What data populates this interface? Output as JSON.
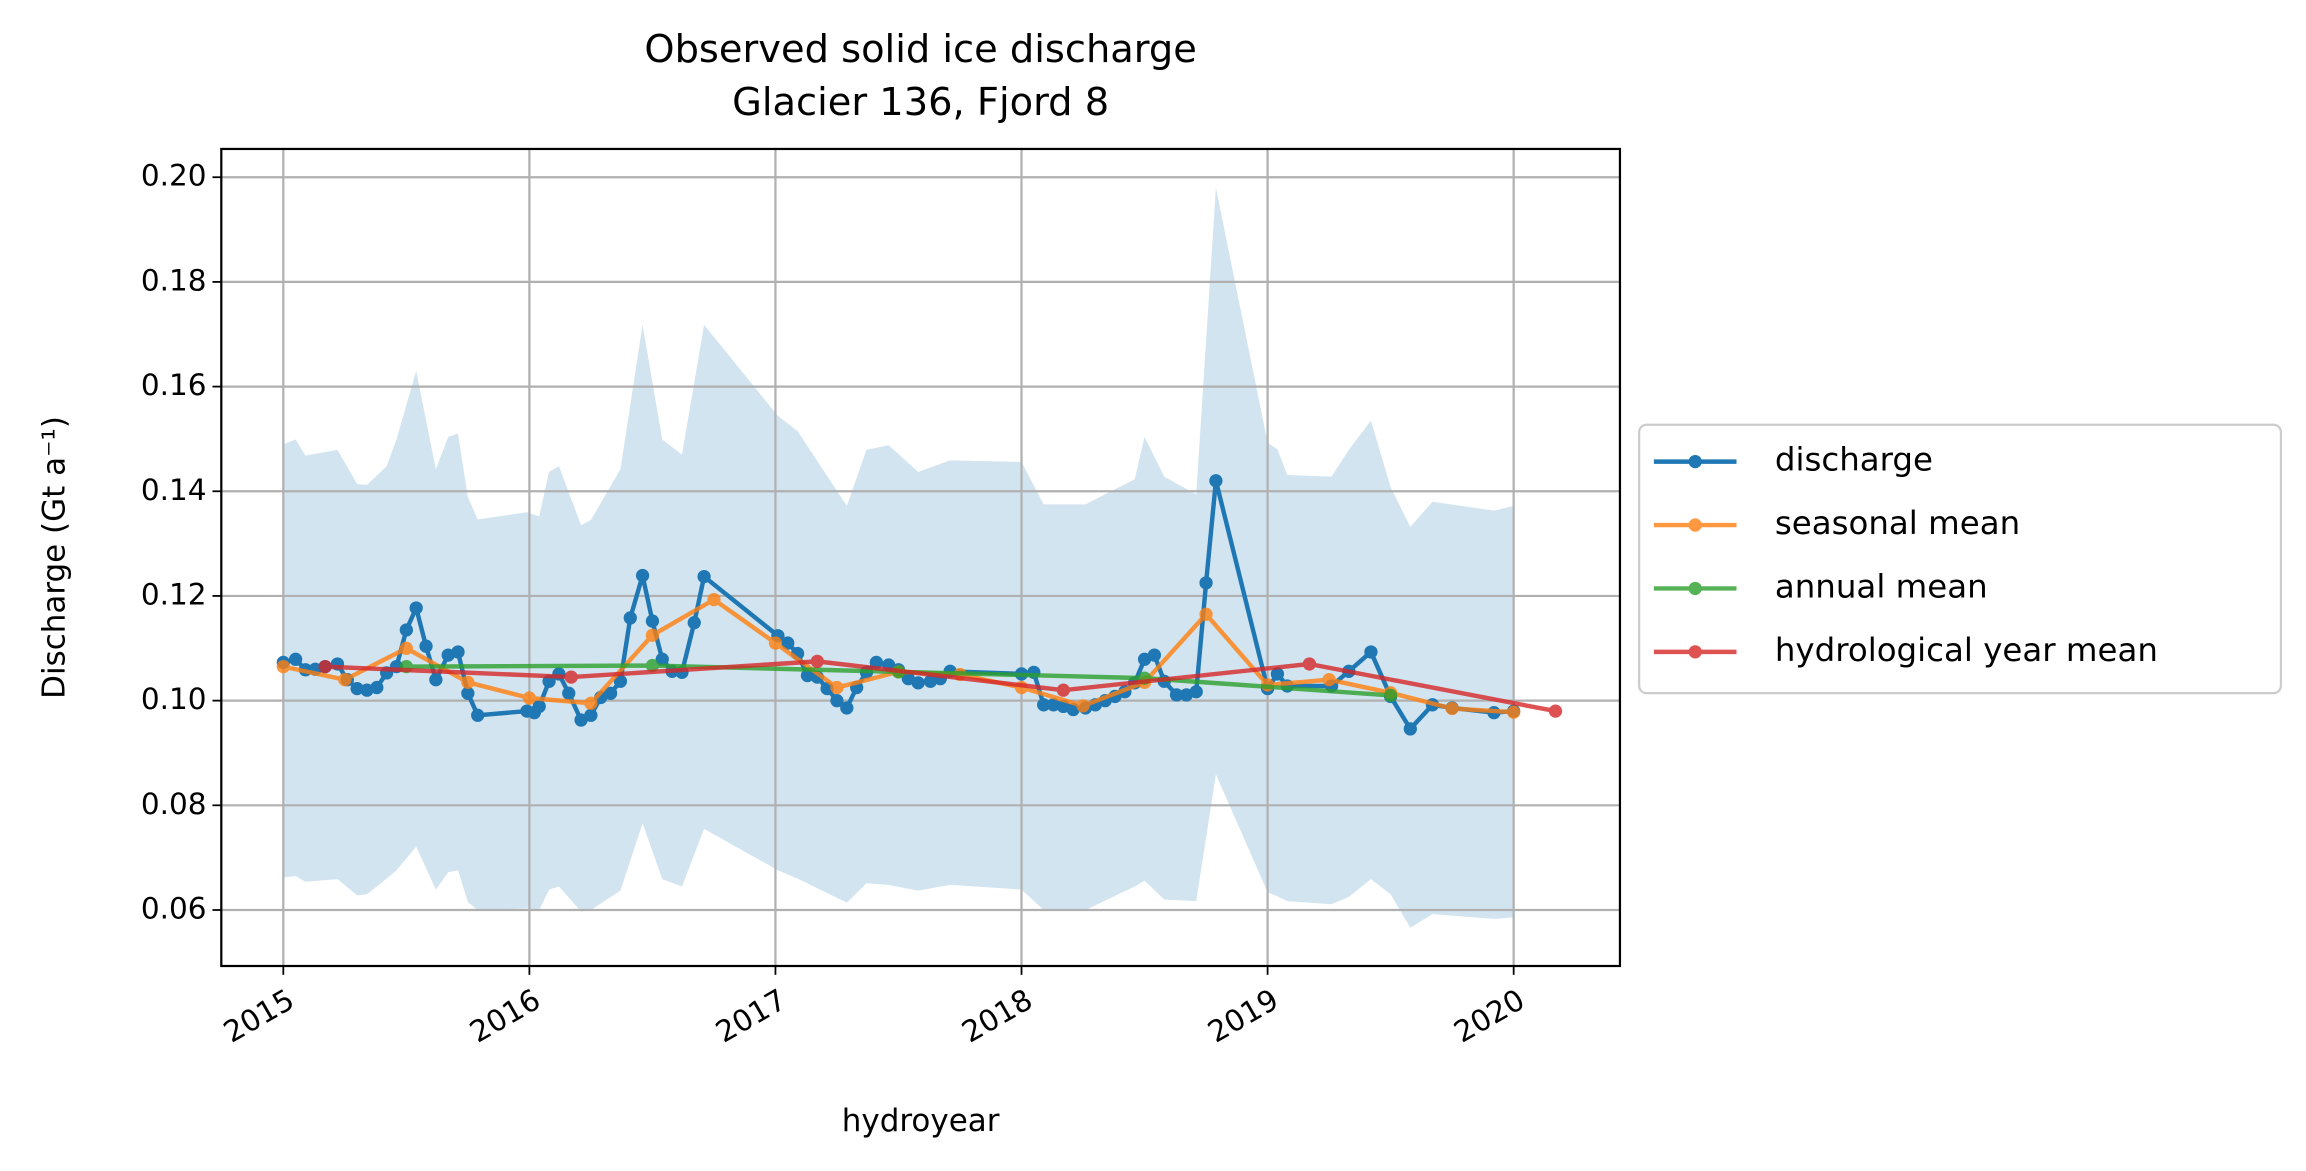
{
  "chart_data": {
    "type": "line",
    "title": "Observed solid ice discharge",
    "subtitle": "Glacier 136, Fjord 8",
    "xlabel": "hydroyear",
    "ylabel": "Discharge (Gt a⁻¹)",
    "xlim": [
      2014.748,
      2020.432
    ],
    "ylim": [
      0.0493,
      0.2054
    ],
    "xticks": [
      2015,
      2016,
      2017,
      2018,
      2019,
      2020
    ],
    "yticks": [
      0.06,
      0.08,
      {
        "value": 0.1,
        "label": "0.10"
      },
      0.12,
      0.14,
      0.16,
      0.18,
      {
        "value": 0.2,
        "label": "0.20"
      }
    ],
    "grid": true,
    "legend": "outside right",
    "band": {
      "color": "#1f77b4",
      "x": [
        2015.0,
        2015.05,
        2015.09,
        2015.22,
        2015.3,
        2015.34,
        2015.42,
        2015.46,
        2015.54,
        2015.62,
        2015.67,
        2015.71,
        2015.75,
        2015.79,
        2015.99,
        2016.04,
        2016.08,
        2016.12,
        2016.21,
        2016.25,
        2016.37,
        2016.46,
        2016.54,
        2016.62,
        2016.71,
        2017.01,
        2017.09,
        2017.29,
        2017.37,
        2017.46,
        2017.58,
        2017.71,
        2018.0,
        2018.09,
        2018.26,
        2018.46,
        2018.5,
        2018.58,
        2018.71,
        2018.79,
        2019.0,
        2019.04,
        2019.08,
        2019.26,
        2019.33,
        2019.42,
        2019.5,
        2019.58,
        2019.67,
        2019.92,
        2020.0
      ],
      "upper": [
        0.149,
        0.1499,
        0.1468,
        0.1479,
        0.1414,
        0.1412,
        0.1448,
        0.1499,
        0.163,
        0.1442,
        0.1504,
        0.151,
        0.1389,
        0.1346,
        0.136,
        0.1352,
        0.1437,
        0.1448,
        0.1335,
        0.1345,
        0.1442,
        0.1718,
        0.1499,
        0.147,
        0.1718,
        0.1544,
        0.1515,
        0.1372,
        0.1479,
        0.1488,
        0.1437,
        0.1459,
        0.1456,
        0.1375,
        0.1375,
        0.1423,
        0.1504,
        0.1428,
        0.1394,
        0.198,
        0.1493,
        0.148,
        0.1431,
        0.1428,
        0.1479,
        0.1535,
        0.1408,
        0.1332,
        0.138,
        0.1363,
        0.1372
      ],
      "lower": [
        0.0662,
        0.0665,
        0.0654,
        0.0659,
        0.0628,
        0.063,
        0.066,
        0.0676,
        0.0721,
        0.0639,
        0.0672,
        0.0676,
        0.0615,
        0.06,
        0.0603,
        0.06,
        0.0639,
        0.0645,
        0.0597,
        0.06,
        0.0637,
        0.0766,
        0.0659,
        0.0645,
        0.0755,
        0.0676,
        0.066,
        0.0614,
        0.0651,
        0.0648,
        0.0637,
        0.0648,
        0.0639,
        0.06,
        0.06,
        0.0645,
        0.0656,
        0.062,
        0.0617,
        0.0859,
        0.0634,
        0.0626,
        0.0617,
        0.0611,
        0.0625,
        0.0659,
        0.063,
        0.0566,
        0.0592,
        0.0583,
        0.0586
      ]
    },
    "series": [
      {
        "name": "discharge",
        "color": "#1f77b4",
        "x": [
          2015.0,
          2015.05,
          2015.09,
          2015.13,
          2015.17,
          2015.22,
          2015.26,
          2015.3,
          2015.34,
          2015.38,
          2015.42,
          2015.46,
          2015.5,
          2015.54,
          2015.58,
          2015.62,
          2015.67,
          2015.71,
          2015.75,
          2015.79,
          2015.99,
          2016.02,
          2016.04,
          2016.08,
          2016.12,
          2016.16,
          2016.21,
          2016.25,
          2016.29,
          2016.33,
          2016.37,
          2016.41,
          2016.46,
          2016.5,
          2016.54,
          2016.58,
          2016.62,
          2016.67,
          2016.71,
          2017.01,
          2017.05,
          2017.09,
          2017.13,
          2017.17,
          2017.21,
          2017.25,
          2017.29,
          2017.33,
          2017.37,
          2017.41,
          2017.46,
          2017.5,
          2017.54,
          2017.58,
          2017.63,
          2017.67,
          2017.71,
          2018.0,
          2018.05,
          2018.09,
          2018.13,
          2018.17,
          2018.21,
          2018.26,
          2018.3,
          2018.34,
          2018.38,
          2018.42,
          2018.46,
          2018.5,
          2018.54,
          2018.58,
          2018.63,
          2018.67,
          2018.71,
          2018.75,
          2018.79,
          2019.0,
          2019.04,
          2019.08,
          2019.26,
          2019.33,
          2019.42,
          2019.5,
          2019.58,
          2019.67,
          2019.75,
          2019.92,
          2020.0
        ],
        "values": [
          0.1073,
          0.1079,
          0.1059,
          0.106,
          0.1065,
          0.107,
          0.104,
          0.1023,
          0.102,
          0.1025,
          0.1053,
          0.1065,
          0.1135,
          0.1177,
          0.1104,
          0.104,
          0.1087,
          0.1093,
          0.1014,
          0.0972,
          0.098,
          0.0977,
          0.0989,
          0.1037,
          0.1051,
          0.1014,
          0.0963,
          0.0972,
          0.1006,
          0.1014,
          0.1037,
          0.1158,
          0.1239,
          0.1152,
          0.1079,
          0.1056,
          0.1054,
          0.1149,
          0.1237,
          0.1124,
          0.111,
          0.109,
          0.1048,
          0.1045,
          0.1023,
          0.1,
          0.0986,
          0.1025,
          0.1054,
          0.1073,
          0.1068,
          0.1059,
          0.1042,
          0.1034,
          0.1037,
          0.1042,
          0.1056,
          0.1051,
          0.1054,
          0.0992,
          0.0992,
          0.0989,
          0.0983,
          0.0986,
          0.0992,
          0.1,
          0.1008,
          0.1017,
          0.1034,
          0.1079,
          0.1087,
          0.1037,
          0.1011,
          0.1011,
          0.1017,
          0.1225,
          0.142,
          0.1023,
          0.1051,
          0.1028,
          0.1028,
          0.1056,
          0.1093,
          0.1008,
          0.0946,
          0.0992,
          0.0986,
          0.0977,
          0.098
        ]
      },
      {
        "name": "seasonal mean",
        "color": "#ff7f0e",
        "x": [
          2015.0,
          2015.25,
          2015.5,
          2015.75,
          2016.0,
          2016.25,
          2016.5,
          2016.75,
          2017.0,
          2017.25,
          2017.5,
          2017.75,
          2018.0,
          2018.25,
          2018.5,
          2018.75,
          2019.0,
          2019.25,
          2019.5,
          2019.75,
          2020.0
        ],
        "values": [
          0.1065,
          0.104,
          0.11,
          0.1035,
          0.1005,
          0.0995,
          0.1125,
          0.1193,
          0.111,
          0.1025,
          0.1055,
          0.105,
          0.1025,
          0.099,
          0.1035,
          0.1165,
          0.103,
          0.104,
          0.1015,
          0.0985,
          0.0978
        ]
      },
      {
        "name": "annual mean",
        "color": "#2ca02c",
        "x": [
          2015.5,
          2016.5,
          2017.5,
          2018.5,
          2019.5
        ],
        "values": [
          0.1065,
          0.1067,
          0.1055,
          0.1043,
          0.101
        ]
      },
      {
        "name": "hydrological year mean",
        "color": "#d62728",
        "x": [
          2015.17,
          2016.17,
          2017.17,
          2018.17,
          2019.17,
          2020.17
        ],
        "values": [
          0.1065,
          0.1045,
          0.1075,
          0.102,
          0.107,
          0.098
        ]
      }
    ]
  }
}
